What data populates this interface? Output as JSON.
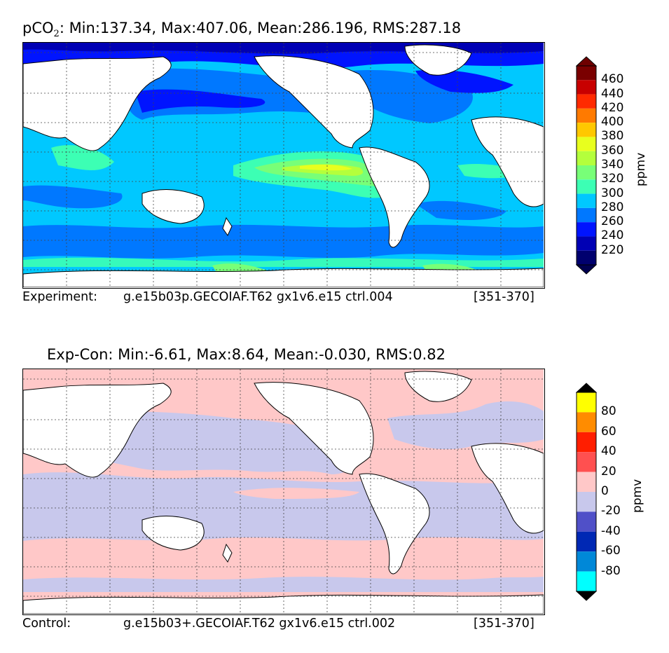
{
  "panel1": {
    "title_prefix": "pCO",
    "title_sub": "2",
    "title_rest": ": Min:137.34, Max:407.06, Mean:286.196, RMS:287.18",
    "caption_label": "Experiment:",
    "caption_case": "g.e15b03p.GECOIAF.T62 gx1v6.e15 ctrl.004",
    "caption_years": "[351-370]",
    "colorbar": {
      "unit": "ppmv",
      "ticks": [
        "460",
        "440",
        "420",
        "400",
        "380",
        "360",
        "340",
        "320",
        "300",
        "280",
        "260",
        "240",
        "220"
      ],
      "colors": [
        "#7a0000",
        "#c80000",
        "#ff2a00",
        "#ff7a00",
        "#ffc800",
        "#e8ff1e",
        "#b4ff3c",
        "#78ff78",
        "#3cffb4",
        "#00c8ff",
        "#0078ff",
        "#0014ff",
        "#0000b4",
        "#00006e"
      ],
      "over_color": "#6e0000",
      "under_color": "#000050"
    }
  },
  "panel2": {
    "title": "Exp-Con: Min:-6.61, Max:8.64, Mean:-0.030, RMS:0.82",
    "caption_label": "Control:",
    "caption_case": "g.e15b03+.GECOIAF.T62 gx1v6.e15 ctrl.002",
    "caption_years": "[351-370]",
    "colorbar": {
      "unit": "ppmv",
      "ticks": [
        "80",
        "60",
        "40",
        "20",
        "0",
        "-20",
        "-40",
        "-60",
        "-80"
      ],
      "colors": [
        "#ffff00",
        "#ff8c00",
        "#ff1e00",
        "#ff5050",
        "#ffc8c8",
        "#c8c8ec",
        "#5050c8",
        "#0028b4",
        "#0088d8",
        "#00ffff"
      ],
      "over_color": "#000000",
      "under_color": "#000000"
    }
  }
}
